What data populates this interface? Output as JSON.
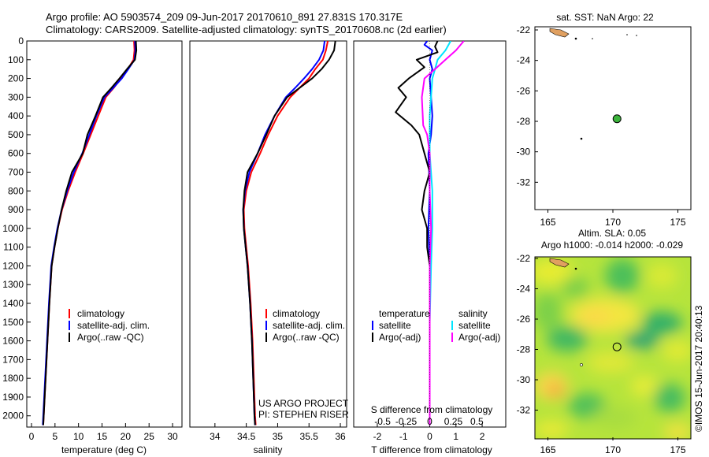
{
  "title": {
    "line1": "Argo profile: AO 5903574_209 09-Jun-2017 20170610_891 27.831S 170.317E",
    "line2": "Climatology: CARS2009. Satellite-adjusted climatology: synTS_20170608.nc (2d earlier)"
  },
  "colors": {
    "climatology": "#ff0000",
    "satellite": "#0000ff",
    "argo": "#000000",
    "sat_salinity": "#00e5ff",
    "argo_salinity": "#ff00ff"
  },
  "chart_data": [
    {
      "type": "line",
      "name": "temperature-panel",
      "xlabel": "temperature (deg C)",
      "xlim": [
        -1,
        32
      ],
      "ylim": [
        2060,
        0
      ],
      "xticks": [
        0,
        5,
        10,
        15,
        20,
        25,
        30
      ],
      "yticks": [
        0,
        100,
        200,
        300,
        400,
        500,
        600,
        700,
        800,
        900,
        1000,
        1100,
        1200,
        1300,
        1400,
        1500,
        1600,
        1700,
        1800,
        1900,
        2000
      ],
      "legend": [
        "climatology",
        "satellite-adj. clim.",
        "Argo(..raw -QC)"
      ],
      "series": [
        {
          "name": "climatology",
          "color": "#ff0000",
          "points": [
            [
              21.8,
              0
            ],
            [
              21.9,
              50
            ],
            [
              21.7,
              100
            ],
            [
              20.5,
              150
            ],
            [
              19.0,
              200
            ],
            [
              17.5,
              250
            ],
            [
              15.8,
              300
            ],
            [
              14.2,
              400
            ],
            [
              12.6,
              500
            ],
            [
              11.0,
              600
            ],
            [
              9.3,
              700
            ],
            [
              7.8,
              800
            ],
            [
              6.5,
              900
            ],
            [
              5.6,
              1000
            ],
            [
              4.9,
              1100
            ],
            [
              4.3,
              1200
            ],
            [
              3.8,
              1400
            ],
            [
              3.4,
              1600
            ],
            [
              3.0,
              1800
            ],
            [
              2.6,
              2000
            ],
            [
              2.5,
              2050
            ]
          ]
        },
        {
          "name": "satellite-adj. clim.",
          "color": "#0000ff",
          "points": [
            [
              22.0,
              0
            ],
            [
              22.1,
              50
            ],
            [
              21.9,
              100
            ],
            [
              20.6,
              150
            ],
            [
              19.2,
              200
            ],
            [
              17.4,
              250
            ],
            [
              15.5,
              300
            ],
            [
              13.8,
              400
            ],
            [
              12.3,
              500
            ],
            [
              10.8,
              600
            ],
            [
              9.0,
              700
            ],
            [
              7.6,
              800
            ],
            [
              6.4,
              900
            ],
            [
              5.5,
              1000
            ],
            [
              4.8,
              1100
            ],
            [
              4.2,
              1200
            ],
            [
              3.7,
              1400
            ],
            [
              3.3,
              1600
            ],
            [
              2.9,
              1800
            ],
            [
              2.5,
              2000
            ],
            [
              2.4,
              2050
            ]
          ]
        },
        {
          "name": "Argo(..raw -QC)",
          "color": "#000000",
          "points": [
            [
              22.2,
              0
            ],
            [
              22.3,
              50
            ],
            [
              22.0,
              100
            ],
            [
              20.3,
              150
            ],
            [
              18.7,
              200
            ],
            [
              17.0,
              250
            ],
            [
              15.2,
              300
            ],
            [
              13.6,
              400
            ],
            [
              11.9,
              500
            ],
            [
              10.9,
              600
            ],
            [
              8.6,
              700
            ],
            [
              7.4,
              800
            ],
            [
              6.4,
              900
            ],
            [
              5.6,
              1000
            ],
            [
              4.9,
              1100
            ],
            [
              4.3,
              1200
            ],
            [
              3.8,
              1400
            ],
            [
              3.4,
              1600
            ],
            [
              3.0,
              1800
            ],
            [
              2.6,
              2000
            ],
            [
              2.5,
              2050
            ]
          ]
        }
      ]
    },
    {
      "type": "line",
      "name": "salinity-panel",
      "xlabel": "salinity",
      "xlim": [
        33.6,
        36.1
      ],
      "ylim": [
        2060,
        0
      ],
      "xticks": [
        34,
        34.5,
        35,
        35.5,
        36
      ],
      "legend": [
        "climatology",
        "satellite-adj. clim.",
        "Argo(..raw -QC)"
      ],
      "series": [
        {
          "name": "climatology",
          "color": "#ff0000",
          "points": [
            [
              35.8,
              0
            ],
            [
              35.77,
              50
            ],
            [
              35.72,
              100
            ],
            [
              35.6,
              150
            ],
            [
              35.5,
              200
            ],
            [
              35.35,
              250
            ],
            [
              35.2,
              300
            ],
            [
              35.0,
              400
            ],
            [
              34.85,
              500
            ],
            [
              34.72,
              600
            ],
            [
              34.58,
              700
            ],
            [
              34.5,
              800
            ],
            [
              34.46,
              900
            ],
            [
              34.47,
              1000
            ],
            [
              34.5,
              1100
            ],
            [
              34.53,
              1200
            ],
            [
              34.57,
              1400
            ],
            [
              34.6,
              1600
            ],
            [
              34.62,
              1800
            ],
            [
              34.64,
              2000
            ],
            [
              34.65,
              2050
            ]
          ]
        },
        {
          "name": "satellite-adj. clim.",
          "color": "#0000ff",
          "points": [
            [
              35.75,
              0
            ],
            [
              35.73,
              50
            ],
            [
              35.66,
              100
            ],
            [
              35.55,
              150
            ],
            [
              35.42,
              200
            ],
            [
              35.28,
              250
            ],
            [
              35.13,
              300
            ],
            [
              34.95,
              400
            ],
            [
              34.8,
              500
            ],
            [
              34.68,
              600
            ],
            [
              34.55,
              700
            ],
            [
              34.48,
              800
            ],
            [
              34.45,
              900
            ],
            [
              34.46,
              1000
            ],
            [
              34.49,
              1100
            ],
            [
              34.52,
              1200
            ],
            [
              34.56,
              1400
            ],
            [
              34.59,
              1600
            ],
            [
              34.61,
              1800
            ],
            [
              34.63,
              2000
            ],
            [
              34.64,
              2050
            ]
          ]
        },
        {
          "name": "Argo(..raw -QC)",
          "color": "#000000",
          "points": [
            [
              35.92,
              0
            ],
            [
              35.9,
              50
            ],
            [
              35.82,
              100
            ],
            [
              35.7,
              150
            ],
            [
              35.55,
              200
            ],
            [
              35.35,
              250
            ],
            [
              35.15,
              300
            ],
            [
              34.95,
              400
            ],
            [
              34.82,
              500
            ],
            [
              34.68,
              600
            ],
            [
              34.52,
              700
            ],
            [
              34.47,
              800
            ],
            [
              34.45,
              900
            ],
            [
              34.46,
              1000
            ],
            [
              34.49,
              1100
            ],
            [
              34.52,
              1200
            ],
            [
              34.56,
              1400
            ],
            [
              34.59,
              1600
            ],
            [
              34.61,
              1800
            ],
            [
              34.63,
              2000
            ],
            [
              34.64,
              2050
            ]
          ]
        }
      ],
      "annotations": [
        "US ARGO PROJECT",
        "PI: STEPHEN RISER"
      ]
    },
    {
      "type": "line",
      "name": "difference-panel",
      "xlabel": "T difference from climatology",
      "xlabel_top": "S difference from climatology",
      "xlim": [
        -2.9,
        2.9
      ],
      "ylim": [
        2060,
        0
      ],
      "xticks": [
        -2,
        -1,
        0,
        1,
        2
      ],
      "xticks_top": [
        "-0.5",
        "-0.25",
        "0",
        "0.25",
        "0.5"
      ],
      "legend_temperature": {
        "heading": "temperature",
        "items": [
          "satellite",
          "Argo(-adj)"
        ]
      },
      "legend_salinity": {
        "heading": "salinity",
        "items": [
          "satellite",
          "Argo(-adj)"
        ]
      },
      "series": [
        {
          "name": "temperature satellite",
          "color": "#0000ff",
          "points": [
            [
              -0.1,
              0
            ],
            [
              -0.2,
              20
            ],
            [
              0.1,
              50
            ],
            [
              0.0,
              100
            ],
            [
              0.1,
              150
            ],
            [
              0.0,
              200
            ],
            [
              0.05,
              300
            ],
            [
              0.1,
              400
            ],
            [
              0.05,
              500
            ],
            [
              -0.05,
              600
            ],
            [
              0.0,
              800
            ],
            [
              -0.05,
              1000
            ],
            [
              0.0,
              1200
            ],
            [
              0.0,
              1500
            ],
            [
              0.0,
              2050
            ]
          ]
        },
        {
          "name": "temperature Argo(-adj)",
          "color": "#000000",
          "points": [
            [
              0.3,
              0
            ],
            [
              0.2,
              30
            ],
            [
              0.3,
              60
            ],
            [
              -0.5,
              100
            ],
            [
              -0.2,
              140
            ],
            [
              -0.8,
              200
            ],
            [
              -1.2,
              250
            ],
            [
              -0.9,
              300
            ],
            [
              -1.3,
              380
            ],
            [
              -0.7,
              450
            ],
            [
              -0.4,
              500
            ],
            [
              -0.2,
              600
            ],
            [
              0.0,
              700
            ],
            [
              -0.1,
              750
            ],
            [
              -0.2,
              800
            ],
            [
              -0.3,
              900
            ],
            [
              -0.1,
              1000
            ],
            [
              -0.1,
              1100
            ],
            [
              0.0,
              1200
            ],
            [
              0.0,
              1400
            ],
            [
              0.0,
              2050
            ]
          ]
        },
        {
          "name": "salinity satellite",
          "color": "#00e5ff",
          "points": [
            [
              0.8,
              0
            ],
            [
              0.6,
              50
            ],
            [
              0.3,
              100
            ],
            [
              0.2,
              150
            ],
            [
              0.1,
              200
            ],
            [
              0.0,
              400
            ],
            [
              0.0,
              600
            ],
            [
              0.1,
              800
            ],
            [
              0.1,
              1000
            ],
            [
              0.05,
              1200
            ],
            [
              0.0,
              1500
            ],
            [
              0.0,
              2050
            ]
          ]
        },
        {
          "name": "salinity Argo(-adj)",
          "color": "#ff00ff",
          "points": [
            [
              1.3,
              0
            ],
            [
              1.0,
              50
            ],
            [
              0.6,
              100
            ],
            [
              0.2,
              150
            ],
            [
              -0.2,
              200
            ],
            [
              -0.3,
              300
            ],
            [
              -0.25,
              450
            ],
            [
              -0.1,
              500
            ],
            [
              0.0,
              600
            ],
            [
              0.0,
              800
            ],
            [
              0.05,
              1000
            ],
            [
              0.0,
              1200
            ],
            [
              0.0,
              2050
            ]
          ]
        }
      ]
    },
    {
      "type": "scatter",
      "name": "sst-map",
      "title": "sat. SST: NaN Argo: 22",
      "xlim": [
        164,
        176
      ],
      "ylim": [
        -34,
        -22
      ],
      "xticks": [
        165,
        170,
        175
      ],
      "yticks": [
        -22,
        -24,
        -26,
        -28,
        -30,
        -32
      ],
      "points": [
        {
          "lon": 170.317,
          "lat": -27.831,
          "color": "#3cb43c"
        }
      ]
    },
    {
      "type": "heatmap",
      "name": "sla-map",
      "title_line1": "Altim. SLA: 0.05",
      "title_line2": "Argo h1000: -0.014 h2000: -0.029",
      "xlim": [
        164,
        176
      ],
      "ylim": [
        -34,
        -22
      ],
      "xticks": [
        165,
        170,
        175
      ],
      "yticks": [
        -22,
        -24,
        -26,
        -28,
        -30,
        -32
      ],
      "points": [
        {
          "lon": 170.317,
          "lat": -27.831
        }
      ]
    }
  ],
  "footer": {
    "credit": "©IMOS 15-Jun-2017 20:40:13"
  }
}
